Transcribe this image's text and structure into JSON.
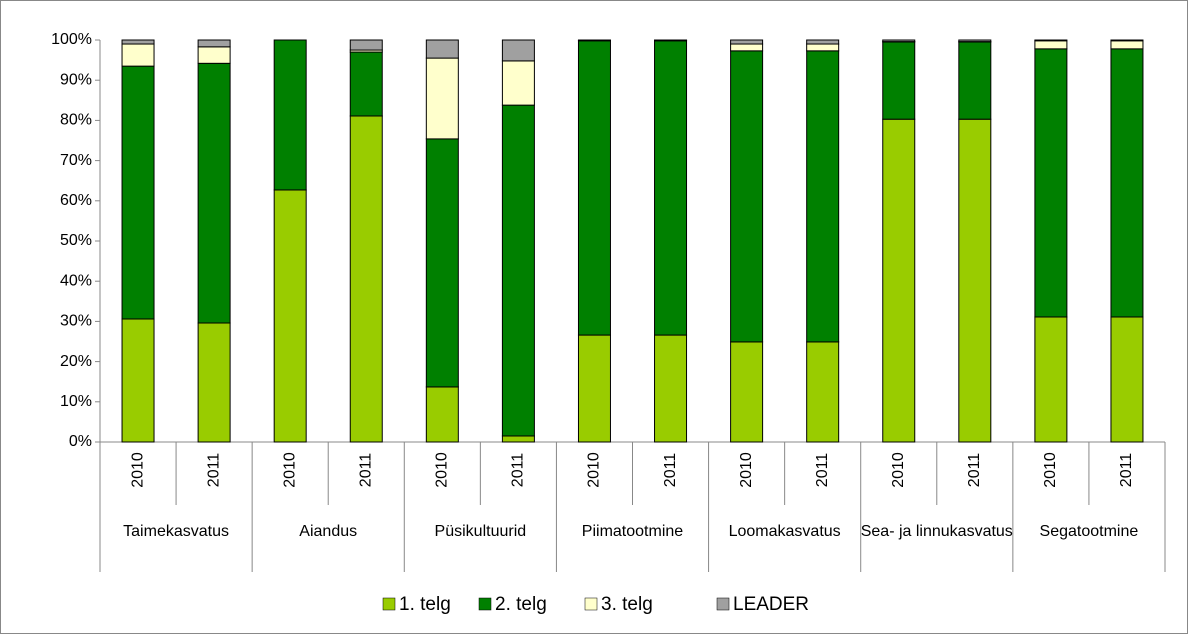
{
  "chart_data": {
    "type": "stacked_bar",
    "categories": [
      "2010",
      "2011",
      "2010",
      "2011",
      "2010",
      "2011",
      "2010",
      "2011",
      "2010",
      "2011",
      "2010",
      "2011",
      "2010",
      "2011"
    ],
    "groups": [
      "Taimekasvatus",
      "Aiandus",
      "Püsikultuurid",
      "Piimatootmine",
      "Loomakasvatus",
      "Sea- ja linnukasvatus",
      "Segatootmine"
    ],
    "series": [
      {
        "name": "1. telg",
        "color": "#99cc00",
        "values": [
          30.6,
          29.6,
          62.7,
          81.1,
          13.7,
          1.5,
          26.6,
          26.6,
          24.9,
          24.9,
          80.3,
          80.3,
          31.1,
          31.1
        ]
      },
      {
        "name": "2. telg",
        "color": "#008000",
        "values": [
          62.9,
          64.6,
          37.3,
          15.9,
          61.7,
          82.3,
          73.2,
          73.2,
          72.4,
          72.4,
          19.2,
          19.2,
          66.7,
          66.7
        ]
      },
      {
        "name": "3.  telg",
        "color": "#ffffcc",
        "values": [
          5.5,
          4.1,
          0,
          0.5,
          20.1,
          11.0,
          0.1,
          0.1,
          1.7,
          1.7,
          0.1,
          0.1,
          2.0,
          2.0
        ]
      },
      {
        "name": "LEADER",
        "color": "#a0a0a0",
        "values": [
          1.0,
          1.7,
          0,
          2.5,
          4.5,
          5.2,
          0.1,
          0.1,
          1.0,
          1.0,
          0.4,
          0.4,
          0.2,
          0.2
        ]
      }
    ],
    "ylim": [
      0,
      100
    ],
    "yticks": [
      {
        "value": 0,
        "label": "0%"
      },
      {
        "value": 10,
        "label": "10%"
      },
      {
        "value": 20,
        "label": "20%"
      },
      {
        "value": 30,
        "label": "30%"
      },
      {
        "value": 40,
        "label": "40%"
      },
      {
        "value": 50,
        "label": "50%"
      },
      {
        "value": 60,
        "label": "60%"
      },
      {
        "value": 70,
        "label": "70%"
      },
      {
        "value": 80,
        "label": "80%"
      },
      {
        "value": 90,
        "label": "90%"
      },
      {
        "value": 100,
        "label": "100%"
      }
    ],
    "legend": "bottom"
  }
}
